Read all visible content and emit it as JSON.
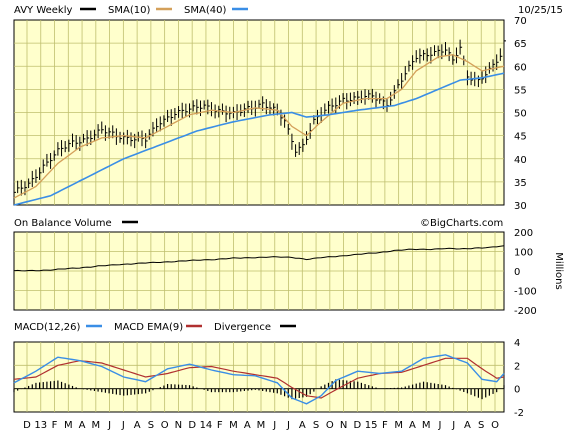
{
  "header": {
    "date": "10/25/15",
    "watermark": "©BigCharts.com"
  },
  "chart_data": [
    {
      "type": "line",
      "name": "price-panel",
      "legend": [
        {
          "label": "AVY Weekly",
          "color": "#000000"
        },
        {
          "label": "SMA(10)",
          "color": "#d4a05a"
        },
        {
          "label": "SMA(40)",
          "color": "#3a8ee6"
        }
      ],
      "ylim": [
        30,
        70
      ],
      "yticks": [
        30,
        35,
        40,
        45,
        50,
        55,
        60,
        65,
        70
      ],
      "x_months": [
        "D",
        "13",
        "F",
        "M",
        "A",
        "M",
        "J",
        "J",
        "A",
        "S",
        "O",
        "N",
        "D",
        "14",
        "F",
        "M",
        "A",
        "M",
        "J",
        "J",
        "A",
        "S",
        "O",
        "N",
        "D",
        "15",
        "F",
        "M",
        "A",
        "M",
        "J",
        "J",
        "A",
        "S",
        "O"
      ],
      "price_anchors": [
        [
          0,
          32.5
        ],
        [
          4,
          34.5
        ],
        [
          8,
          38.5
        ],
        [
          12,
          41.5
        ],
        [
          16,
          43.5
        ],
        [
          20,
          44.5
        ],
        [
          24,
          46
        ],
        [
          28,
          45
        ],
        [
          32,
          44.5
        ],
        [
          36,
          44
        ],
        [
          40,
          48
        ],
        [
          44,
          50
        ],
        [
          48,
          50.5
        ],
        [
          52,
          51.5
        ],
        [
          56,
          50.5
        ],
        [
          60,
          49.5
        ],
        [
          64,
          51
        ],
        [
          68,
          52
        ],
        [
          72,
          50
        ],
        [
          74,
          48
        ],
        [
          77,
          42
        ],
        [
          79,
          43
        ],
        [
          82,
          48
        ],
        [
          86,
          51
        ],
        [
          90,
          53
        ],
        [
          94,
          53
        ],
        [
          98,
          53.5
        ],
        [
          102,
          52
        ],
        [
          106,
          57
        ],
        [
          110,
          62
        ],
        [
          114,
          63
        ],
        [
          118,
          63.5
        ],
        [
          120,
          61
        ],
        [
          122,
          64
        ],
        [
          124,
          58
        ],
        [
          127,
          57
        ],
        [
          130,
          59
        ],
        [
          133,
          62
        ],
        [
          134,
          65
        ]
      ],
      "sma10_anchors": [
        [
          0,
          31.5
        ],
        [
          6,
          34
        ],
        [
          12,
          39
        ],
        [
          18,
          42.5
        ],
        [
          24,
          44.5
        ],
        [
          30,
          45
        ],
        [
          36,
          44.5
        ],
        [
          42,
          47
        ],
        [
          48,
          49.5
        ],
        [
          54,
          50.5
        ],
        [
          60,
          50
        ],
        [
          66,
          51
        ],
        [
          72,
          50.5
        ],
        [
          76,
          47
        ],
        [
          80,
          45
        ],
        [
          84,
          48
        ],
        [
          90,
          52
        ],
        [
          96,
          53
        ],
        [
          102,
          53
        ],
        [
          106,
          55
        ],
        [
          110,
          59
        ],
        [
          116,
          62
        ],
        [
          120,
          62.5
        ],
        [
          124,
          61
        ],
        [
          128,
          59
        ],
        [
          134,
          60
        ]
      ],
      "sma40_anchors": [
        [
          0,
          30
        ],
        [
          10,
          32
        ],
        [
          20,
          36
        ],
        [
          30,
          40
        ],
        [
          40,
          43
        ],
        [
          50,
          46
        ],
        [
          60,
          48
        ],
        [
          70,
          49.5
        ],
        [
          76,
          50
        ],
        [
          80,
          49
        ],
        [
          86,
          49.5
        ],
        [
          94,
          50.5
        ],
        [
          104,
          51.5
        ],
        [
          110,
          53
        ],
        [
          116,
          55
        ],
        [
          122,
          57
        ],
        [
          128,
          57.5
        ],
        [
          134,
          58.5
        ]
      ]
    },
    {
      "type": "line",
      "name": "obv-panel",
      "legend": [
        {
          "label": "On Balance Volume",
          "color": "#000000"
        }
      ],
      "ylim": [
        -200,
        200
      ],
      "yticks": [
        200,
        100,
        0,
        -100,
        -200
      ],
      "ylabel": "Millions",
      "obv_anchors": [
        [
          0,
          0
        ],
        [
          10,
          5
        ],
        [
          20,
          20
        ],
        [
          30,
          35
        ],
        [
          40,
          45
        ],
        [
          50,
          55
        ],
        [
          60,
          65
        ],
        [
          70,
          72
        ],
        [
          76,
          70
        ],
        [
          80,
          60
        ],
        [
          86,
          72
        ],
        [
          94,
          85
        ],
        [
          100,
          95
        ],
        [
          104,
          105
        ],
        [
          108,
          110
        ],
        [
          114,
          112
        ],
        [
          118,
          115
        ],
        [
          122,
          113
        ],
        [
          126,
          118
        ],
        [
          130,
          120
        ],
        [
          134,
          128
        ]
      ]
    },
    {
      "type": "line",
      "name": "macd-panel",
      "legend": [
        {
          "label": "MACD(12,26)",
          "color": "#3a8ee6"
        },
        {
          "label": "MACD EMA(9)",
          "color": "#b03030"
        },
        {
          "label": "Divergence",
          "color": "#000000"
        }
      ],
      "ylim": [
        -2,
        4
      ],
      "yticks": [
        4,
        2,
        0,
        -2
      ],
      "macd_anchors": [
        [
          0,
          0.5
        ],
        [
          6,
          1.5
        ],
        [
          12,
          2.7
        ],
        [
          18,
          2.4
        ],
        [
          24,
          1.9
        ],
        [
          30,
          1.0
        ],
        [
          36,
          0.6
        ],
        [
          42,
          1.7
        ],
        [
          48,
          2.1
        ],
        [
          54,
          1.6
        ],
        [
          60,
          1.2
        ],
        [
          66,
          1.1
        ],
        [
          72,
          0.5
        ],
        [
          76,
          -0.8
        ],
        [
          80,
          -1.3
        ],
        [
          84,
          -0.6
        ],
        [
          88,
          0.7
        ],
        [
          94,
          1.5
        ],
        [
          100,
          1.3
        ],
        [
          106,
          1.5
        ],
        [
          112,
          2.6
        ],
        [
          118,
          2.9
        ],
        [
          124,
          2.2
        ],
        [
          128,
          0.8
        ],
        [
          132,
          0.6
        ],
        [
          134,
          1.3
        ]
      ],
      "signal_anchors": [
        [
          0,
          0.8
        ],
        [
          6,
          1.0
        ],
        [
          12,
          2.0
        ],
        [
          18,
          2.4
        ],
        [
          24,
          2.2
        ],
        [
          30,
          1.6
        ],
        [
          36,
          1.0
        ],
        [
          42,
          1.3
        ],
        [
          48,
          1.8
        ],
        [
          54,
          1.9
        ],
        [
          60,
          1.5
        ],
        [
          66,
          1.2
        ],
        [
          72,
          0.9
        ],
        [
          76,
          0.1
        ],
        [
          80,
          -0.6
        ],
        [
          84,
          -0.8
        ],
        [
          88,
          -0.1
        ],
        [
          94,
          0.9
        ],
        [
          100,
          1.3
        ],
        [
          106,
          1.4
        ],
        [
          112,
          2.0
        ],
        [
          118,
          2.6
        ],
        [
          124,
          2.6
        ],
        [
          128,
          1.7
        ],
        [
          132,
          0.9
        ],
        [
          134,
          1.0
        ]
      ]
    }
  ]
}
